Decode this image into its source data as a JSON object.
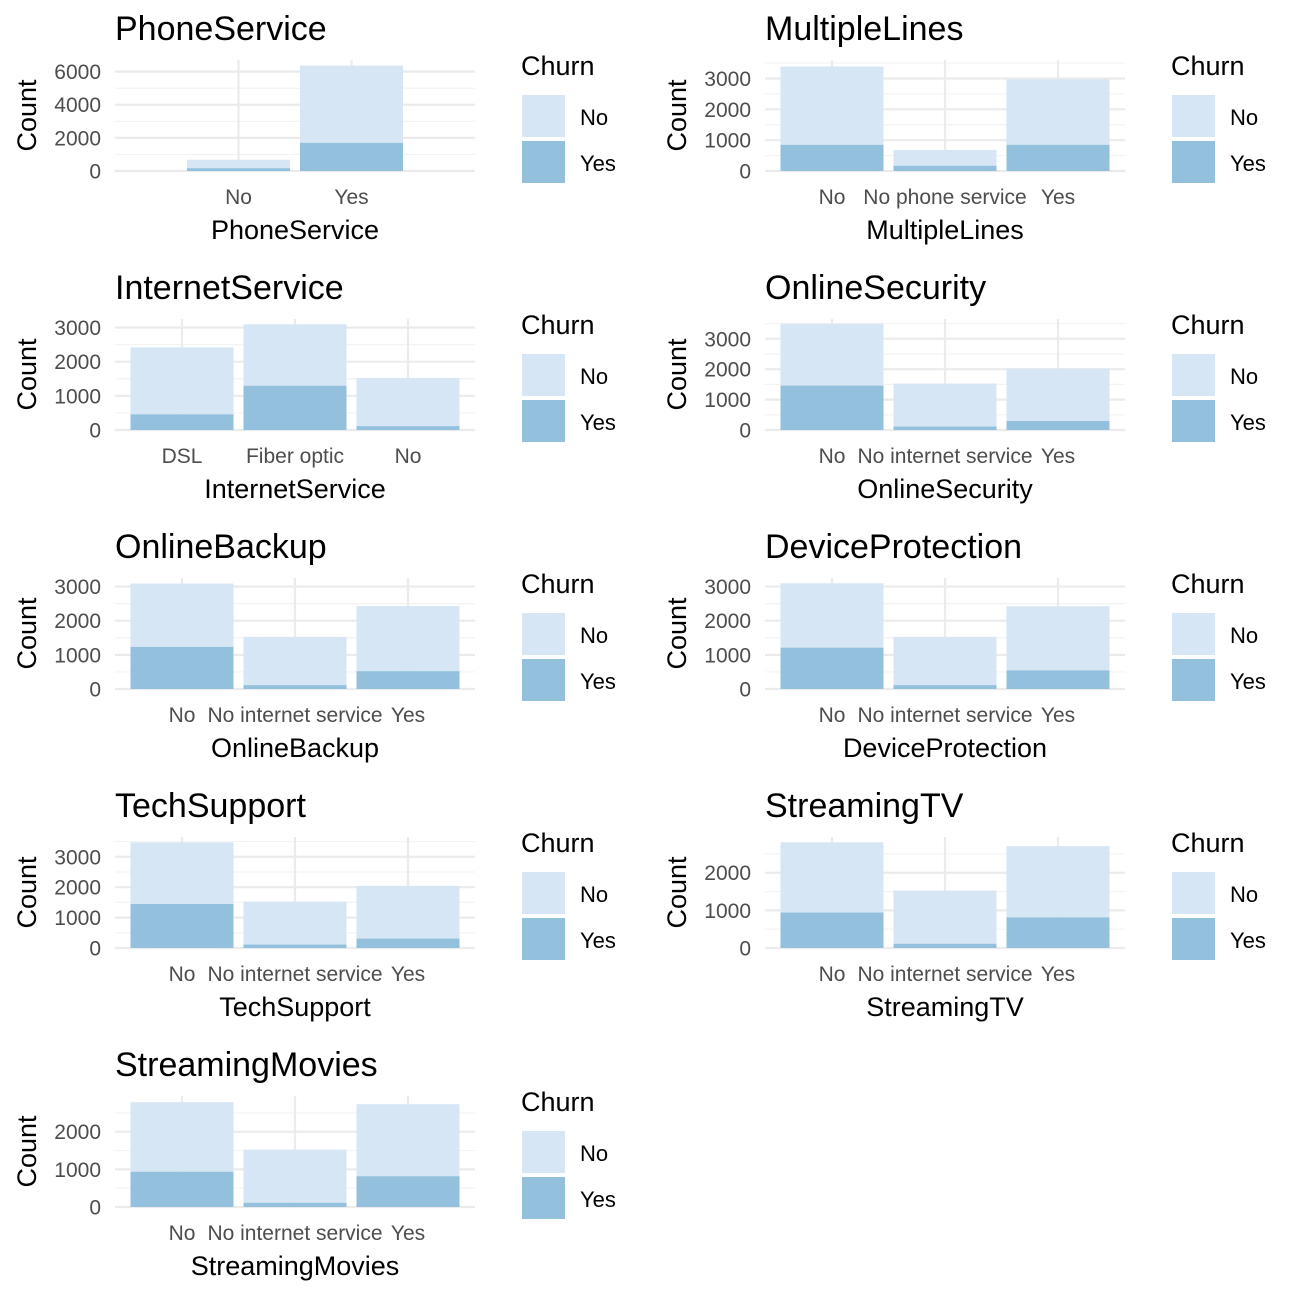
{
  "chart_data": [
    {
      "type": "bar",
      "stacked": true,
      "title": "PhoneService",
      "xlabel": "PhoneService",
      "ylabel": "Count",
      "categories": [
        "No",
        "Yes"
      ],
      "series": [
        {
          "name": "No",
          "values": [
            512,
            4662
          ]
        },
        {
          "name": "Yes",
          "values": [
            170,
            1699
          ]
        }
      ],
      "yticks": [
        0,
        2000,
        4000,
        6000
      ],
      "ylim": [
        0,
        6700
      ],
      "legend": {
        "title": "Churn",
        "entries": [
          "No",
          "Yes"
        ],
        "position": "right"
      }
    },
    {
      "type": "bar",
      "stacked": true,
      "title": "MultipleLines",
      "xlabel": "MultipleLines",
      "ylabel": "Count",
      "categories": [
        "No",
        "No phone service",
        "Yes"
      ],
      "series": [
        {
          "name": "No",
          "values": [
            2541,
            512,
            2121
          ]
        },
        {
          "name": "Yes",
          "values": [
            849,
            170,
            850
          ]
        }
      ],
      "yticks": [
        0,
        1000,
        2000,
        3000
      ],
      "ylim": [
        0,
        3600
      ],
      "legend": {
        "title": "Churn",
        "entries": [
          "No",
          "Yes"
        ],
        "position": "right"
      }
    },
    {
      "type": "bar",
      "stacked": true,
      "title": "InternetService",
      "xlabel": "InternetService",
      "ylabel": "Count",
      "categories": [
        "DSL",
        "Fiber optic",
        "No"
      ],
      "series": [
        {
          "name": "No",
          "values": [
            1962,
            1799,
            1413
          ]
        },
        {
          "name": "Yes",
          "values": [
            459,
            1297,
            113
          ]
        }
      ],
      "yticks": [
        0,
        1000,
        2000,
        3000
      ],
      "ylim": [
        0,
        3250
      ],
      "legend": {
        "title": "Churn",
        "entries": [
          "No",
          "Yes"
        ],
        "position": "right"
      }
    },
    {
      "type": "bar",
      "stacked": true,
      "title": "OnlineSecurity",
      "xlabel": "OnlineSecurity",
      "ylabel": "Count",
      "categories": [
        "No",
        "No internet service",
        "Yes"
      ],
      "series": [
        {
          "name": "No",
          "values": [
            2037,
            1413,
            1724
          ]
        },
        {
          "name": "Yes",
          "values": [
            1461,
            113,
            295
          ]
        }
      ],
      "yticks": [
        0,
        1000,
        2000,
        3000
      ],
      "ylim": [
        0,
        3650
      ],
      "legend": {
        "title": "Churn",
        "entries": [
          "No",
          "Yes"
        ],
        "position": "right"
      }
    },
    {
      "type": "bar",
      "stacked": true,
      "title": "OnlineBackup",
      "xlabel": "OnlineBackup",
      "ylabel": "Count",
      "categories": [
        "No",
        "No internet service",
        "Yes"
      ],
      "series": [
        {
          "name": "No",
          "values": [
            1855,
            1413,
            1906
          ]
        },
        {
          "name": "Yes",
          "values": [
            1233,
            113,
            523
          ]
        }
      ],
      "yticks": [
        0,
        1000,
        2000,
        3000
      ],
      "ylim": [
        0,
        3250
      ],
      "legend": {
        "title": "Churn",
        "entries": [
          "No",
          "Yes"
        ],
        "position": "right"
      }
    },
    {
      "type": "bar",
      "stacked": true,
      "title": "DeviceProtection",
      "xlabel": "DeviceProtection",
      "ylabel": "Count",
      "categories": [
        "No",
        "No internet service",
        "Yes"
      ],
      "series": [
        {
          "name": "No",
          "values": [
            1884,
            1413,
            1877
          ]
        },
        {
          "name": "Yes",
          "values": [
            1211,
            113,
            545
          ]
        }
      ],
      "yticks": [
        0,
        1000,
        2000,
        3000
      ],
      "ylim": [
        0,
        3250
      ],
      "legend": {
        "title": "Churn",
        "entries": [
          "No",
          "Yes"
        ],
        "position": "right"
      }
    },
    {
      "type": "bar",
      "stacked": true,
      "title": "TechSupport",
      "xlabel": "TechSupport",
      "ylabel": "Count",
      "categories": [
        "No",
        "No internet service",
        "Yes"
      ],
      "series": [
        {
          "name": "No",
          "values": [
            2027,
            1413,
            1734
          ]
        },
        {
          "name": "Yes",
          "values": [
            1446,
            113,
            310
          ]
        }
      ],
      "yticks": [
        0,
        1000,
        2000,
        3000
      ],
      "ylim": [
        0,
        3650
      ],
      "legend": {
        "title": "Churn",
        "entries": [
          "No",
          "Yes"
        ],
        "position": "right"
      }
    },
    {
      "type": "bar",
      "stacked": true,
      "title": "StreamingTV",
      "xlabel": "StreamingTV",
      "ylabel": "Count",
      "categories": [
        "No",
        "No internet service",
        "Yes"
      ],
      "series": [
        {
          "name": "No",
          "values": [
            1868,
            1413,
            1893
          ]
        },
        {
          "name": "Yes",
          "values": [
            942,
            113,
            814
          ]
        }
      ],
      "yticks": [
        0,
        1000,
        2000
      ],
      "ylim": [
        0,
        2950
      ],
      "legend": {
        "title": "Churn",
        "entries": [
          "No",
          "Yes"
        ],
        "position": "right"
      }
    },
    {
      "type": "bar",
      "stacked": true,
      "title": "StreamingMovies",
      "xlabel": "StreamingMovies",
      "ylabel": "Count",
      "categories": [
        "No",
        "No internet service",
        "Yes"
      ],
      "series": [
        {
          "name": "No",
          "values": [
            1847,
            1413,
            1914
          ]
        },
        {
          "name": "Yes",
          "values": [
            938,
            113,
            818
          ]
        }
      ],
      "yticks": [
        0,
        1000,
        2000
      ],
      "ylim": [
        0,
        2950
      ],
      "legend": {
        "title": "Churn",
        "entries": [
          "No",
          "Yes"
        ],
        "position": "right"
      }
    }
  ],
  "colors": {
    "churn_no": "#d6e6f4",
    "churn_yes": "#92c0dd",
    "grid_major": "#ebebeb",
    "grid_minor": "#f3f3f3"
  }
}
